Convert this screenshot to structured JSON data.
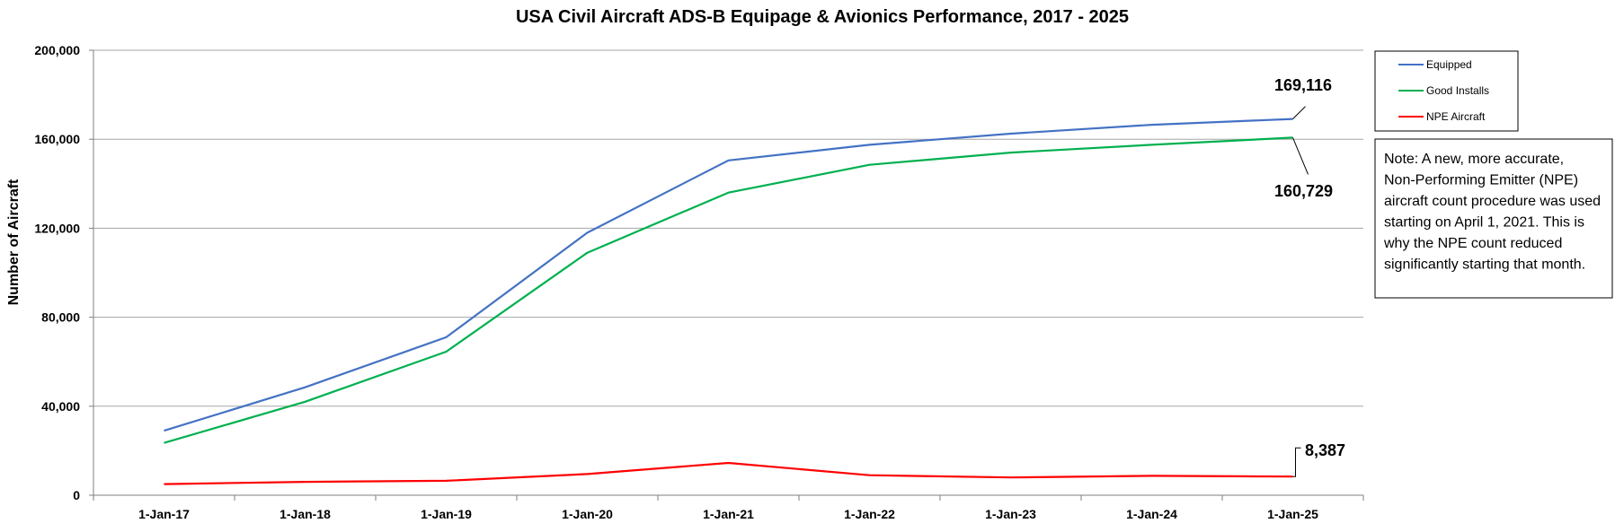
{
  "chart_data": {
    "type": "line",
    "title": "USA Civil Aircraft ADS-B Equipage & Avionics Performance, 2017 - 2025",
    "xlabel": "",
    "ylabel": "Number of Aircraft",
    "categories": [
      "1-Jan-17",
      "1-Jan-18",
      "1-Jan-19",
      "1-Jan-20",
      "1-Jan-21",
      "1-Jan-22",
      "1-Jan-23",
      "1-Jan-24",
      "1-Jan-25"
    ],
    "ylim": [
      0,
      200000
    ],
    "yticks": [
      0,
      40000,
      80000,
      120000,
      160000,
      200000
    ],
    "ytick_labels": [
      "0",
      "40,000",
      "80,000",
      "120,000",
      "160,000",
      "200,000"
    ],
    "grid": "horizontal",
    "legend_position": "top-right",
    "series": [
      {
        "name": "Equipped",
        "color": "#4472C4",
        "values": [
          29000,
          48500,
          71000,
          118000,
          150500,
          157500,
          162500,
          166500,
          169116
        ]
      },
      {
        "name": "Good Installs",
        "color": "#00B050",
        "values": [
          23500,
          42000,
          64500,
          109000,
          136000,
          148500,
          154000,
          157500,
          160729
        ]
      },
      {
        "name": "NPE Aircraft",
        "color": "#FF0000",
        "values": [
          5000,
          6000,
          6500,
          9500,
          14500,
          9000,
          8000,
          8700,
          8387
        ]
      }
    ],
    "annotations": [
      {
        "series": "Equipped",
        "text": "169,116"
      },
      {
        "series": "Good Installs",
        "text": "160,729"
      },
      {
        "series": "NPE Aircraft",
        "text": "8,387"
      }
    ],
    "note": "Note: A new, more accurate, Non-Performing Emitter (NPE) aircraft count procedure was used starting on April 1, 2021. This is why the NPE count reduced significantly starting that month."
  }
}
